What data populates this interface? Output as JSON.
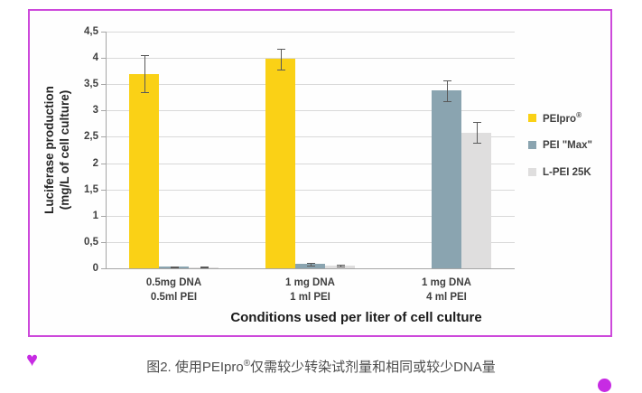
{
  "page": {
    "caption": {
      "prefix": "图2. 使用PEIpro",
      "sup": "®",
      "suffix": "仅需较少转染试剂量和相同或较少DNA量"
    },
    "icons": {
      "heart": "♥"
    },
    "decorations": {
      "frame_border_color": "#CD49DB",
      "heart_color": "#C72BE3",
      "dot_color": "#C72BE3"
    }
  },
  "chart_data": {
    "type": "bar",
    "title": "",
    "ylabel_line1": "Luciferase production",
    "ylabel_line2": "(mg/L of cell culture)",
    "xlabel": "Conditions used per liter of cell culture",
    "ylim": [
      0,
      4.5
    ],
    "ytick_step": 0.5,
    "yticks_labels": [
      "0",
      "0,5",
      "1",
      "1,5",
      "2",
      "2,5",
      "3",
      "3,5",
      "4",
      "4,5"
    ],
    "grid": "horizontal",
    "legend_position": "right",
    "categories": [
      {
        "line1": "0.5mg DNA",
        "line2": "0.5ml PEI"
      },
      {
        "line1": "1 mg DNA",
        "line2": "1 ml PEI"
      },
      {
        "line1": "1 mg DNA",
        "line2": "4 ml PEI"
      }
    ],
    "series": [
      {
        "name": "PEIpro®",
        "color": "#FAD116",
        "values": [
          3.7,
          3.98,
          null
        ],
        "errors": [
          0.35,
          0.2,
          null
        ]
      },
      {
        "name": "PEI \"Max\"",
        "color": "#8AA4B0",
        "values": [
          0.03,
          0.08,
          3.38
        ],
        "errors": [
          0.01,
          0.03,
          0.2
        ]
      },
      {
        "name": "L-PEI 25K",
        "color": "#DFDEDE",
        "values": [
          0.02,
          0.05,
          2.58
        ],
        "errors": [
          0.01,
          0.02,
          0.2
        ]
      }
    ]
  }
}
